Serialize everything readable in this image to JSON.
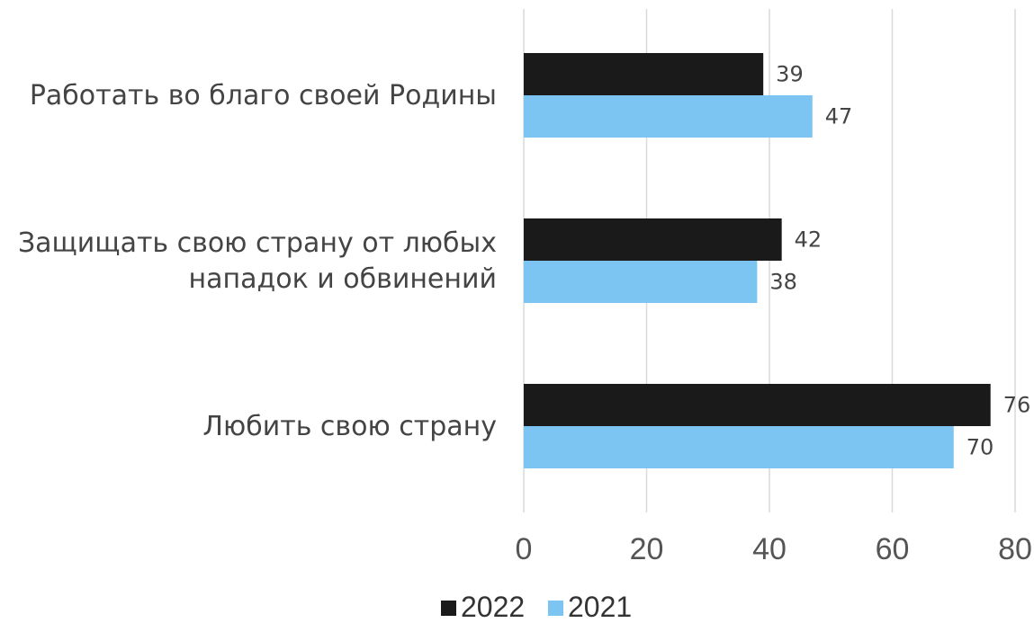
{
  "chart_data": {
    "type": "bar",
    "orientation": "horizontal",
    "categories": [
      [
        "Работать во благо своей Родины"
      ],
      [
        "Защищать свою страну от любых",
        "нападок и обвинений"
      ],
      [
        "Любить свою страну"
      ]
    ],
    "series": [
      {
        "name": "2022",
        "color": "#1a1a1a",
        "values": [
          39,
          42,
          76
        ]
      },
      {
        "name": "2021",
        "color": "#7cc4f2",
        "values": [
          47,
          38,
          70
        ]
      }
    ],
    "xlim": [
      0,
      80
    ],
    "ticks": [
      0,
      20,
      40,
      60,
      80
    ],
    "grid": true,
    "legend_position": "bottom",
    "title": "",
    "xlabel": "",
    "ylabel": ""
  }
}
